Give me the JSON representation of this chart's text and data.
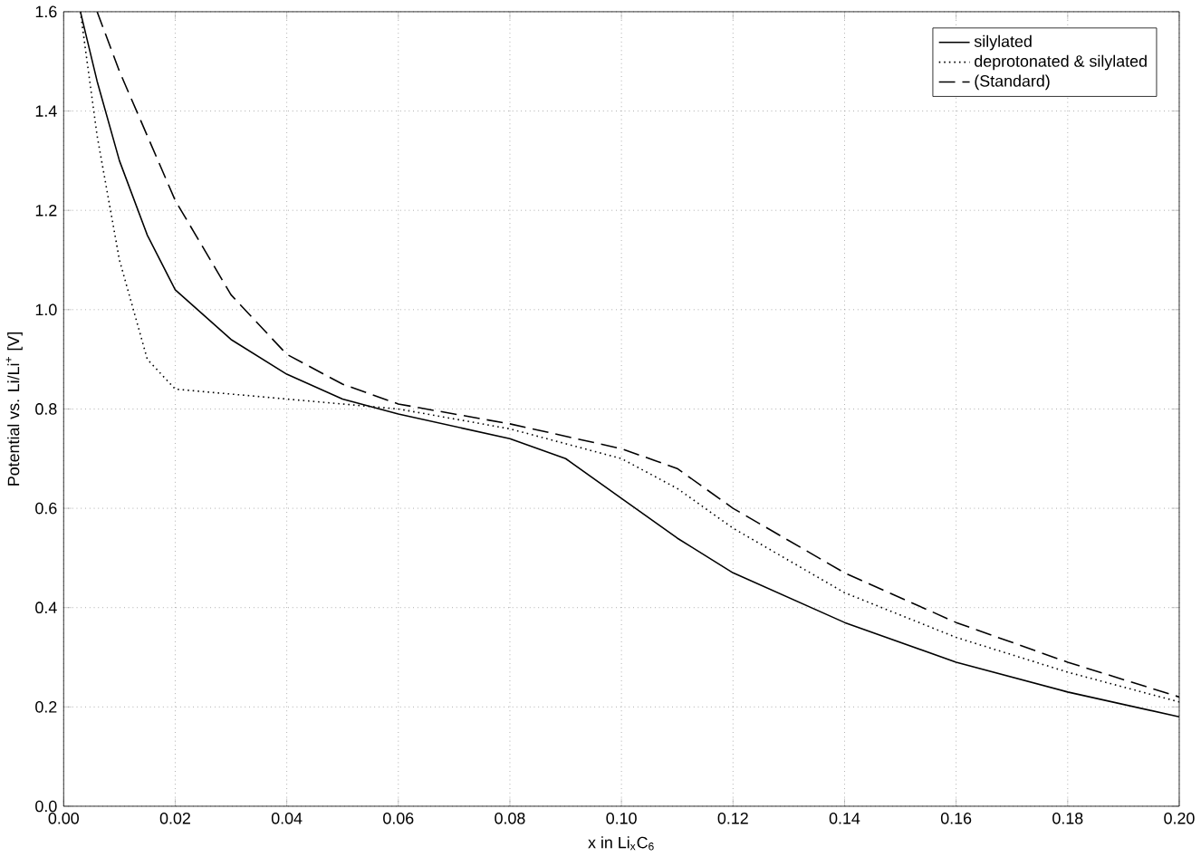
{
  "chart_data": {
    "type": "line",
    "xlabel": "x in Li$_{x}$C$_{6}$",
    "ylabel": "Potential vs. Li/Li$^{+}$ [V]",
    "xlim": [
      0,
      0.2
    ],
    "ylim": [
      0,
      1.6
    ],
    "xticks": [
      {
        "value": 0,
        "label": "0.00"
      },
      {
        "value": 0.02,
        "label": "0.02"
      },
      {
        "value": 0.04,
        "label": "0.04"
      },
      {
        "value": 0.06,
        "label": "0.06"
      },
      {
        "value": 0.08,
        "label": "0.08"
      },
      {
        "value": 0.1,
        "label": "0.10"
      },
      {
        "value": 0.12,
        "label": "0.12"
      },
      {
        "value": 0.14,
        "label": "0.14"
      },
      {
        "value": 0.16,
        "label": "0.16"
      },
      {
        "value": 0.18,
        "label": "0.18"
      },
      {
        "value": 0.2,
        "label": "0.20"
      }
    ],
    "yticks": [
      {
        "value": 0,
        "label": "0.0"
      },
      {
        "value": 0.2,
        "label": "0.2"
      },
      {
        "value": 0.4,
        "label": "0.4"
      },
      {
        "value": 0.6,
        "label": "0.6"
      },
      {
        "value": 0.8,
        "label": "0.8"
      },
      {
        "value": 1,
        "label": "1.0"
      },
      {
        "value": 1.2,
        "label": "1.2"
      },
      {
        "value": 1.4,
        "label": "1.4"
      },
      {
        "value": 1.6,
        "label": "1.6"
      }
    ],
    "grid": true,
    "legend": "top right",
    "marker": "none",
    "series": [
      {
        "name": "silylated",
        "color": "#000000",
        "line_style": "solid",
        "x": [
          0.003,
          0.006,
          0.01,
          0.015,
          0.02,
          0.03,
          0.04,
          0.05,
          0.06,
          0.08,
          0.09,
          0.1,
          0.11,
          0.12,
          0.14,
          0.16,
          0.18,
          0.2
        ],
        "values": [
          1.6,
          1.46,
          1.3,
          1.15,
          1.04,
          0.94,
          0.87,
          0.82,
          0.79,
          0.74,
          0.7,
          0.62,
          0.54,
          0.47,
          0.37,
          0.29,
          0.23,
          0.18
        ]
      },
      {
        "name": "deprotonated & silylated",
        "color": "#000000",
        "line_style": "dotted",
        "x": [
          0.003,
          0.006,
          0.01,
          0.015,
          0.02,
          0.03,
          0.04,
          0.06,
          0.08,
          0.1,
          0.11,
          0.12,
          0.14,
          0.16,
          0.18,
          0.2
        ],
        "values": [
          1.6,
          1.35,
          1.1,
          0.9,
          0.84,
          0.83,
          0.82,
          0.8,
          0.76,
          0.7,
          0.64,
          0.56,
          0.43,
          0.34,
          0.27,
          0.21
        ]
      },
      {
        "name": "(Standard)",
        "color": "#000000",
        "line_style": "dashed",
        "x": [
          0.006,
          0.01,
          0.02,
          0.03,
          0.04,
          0.05,
          0.06,
          0.08,
          0.1,
          0.11,
          0.12,
          0.14,
          0.16,
          0.18,
          0.2
        ],
        "values": [
          1.6,
          1.48,
          1.22,
          1.03,
          0.91,
          0.85,
          0.81,
          0.77,
          0.72,
          0.68,
          0.6,
          0.47,
          0.37,
          0.29,
          0.22
        ]
      }
    ]
  }
}
